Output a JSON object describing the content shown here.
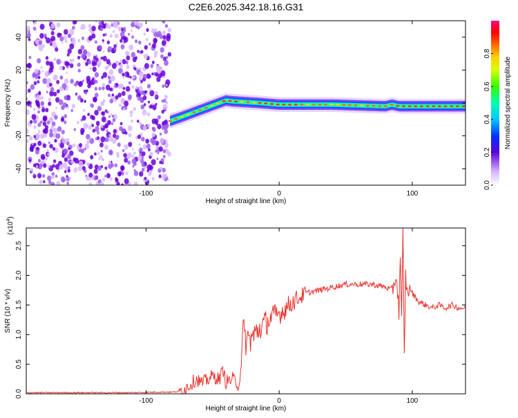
{
  "figure_title": "C2E6.2025.342.18.16.G31",
  "colors": {
    "snr_line": "#e8302a",
    "axis": "#000000",
    "track_core": "#e8302a",
    "scatter_dark": "#6a00d8",
    "scatter_light": "#d9b8ff"
  },
  "chart_data": [
    {
      "type": "heatmap",
      "title": "",
      "xlabel": "Height of straight line (km)",
      "ylabel": "Frequency (Hz)",
      "xlim": [
        -190,
        140
      ],
      "ylim": [
        -50,
        50
      ],
      "x_ticks": [
        -100,
        0,
        100
      ],
      "y_ticks": [
        -40,
        -20,
        0,
        20,
        40
      ],
      "noise_region_x": [
        -190,
        -82
      ],
      "signal_track": {
        "x": [
          -82,
          -75,
          -65,
          -55,
          -45,
          -40,
          -35,
          -25,
          -15,
          0,
          20,
          40,
          60,
          80,
          85,
          90,
          100,
          120,
          140
        ],
        "freq": [
          -11,
          -9,
          -6,
          -3,
          0,
          1.5,
          1,
          0.5,
          0,
          -1,
          -1,
          -1,
          -1.5,
          -2,
          -1,
          -2,
          -2,
          -2,
          -2
        ]
      },
      "colorbar": {
        "label": "Normalized spectral amplitude",
        "range": [
          0,
          1
        ],
        "ticks": [
          0.0,
          0.2,
          0.4,
          0.6,
          0.8
        ]
      }
    },
    {
      "type": "line",
      "title": "",
      "xlabel": "Height of straight line (km)",
      "ylabel": "SNR (10 * v/v)",
      "y_multiplier": "(x10",
      "y_multiplier_exp": "4",
      "y_multiplier_close": ")",
      "xlim": [
        -190,
        140
      ],
      "ylim": [
        0,
        2.8
      ],
      "x_ticks": [
        -100,
        0,
        100
      ],
      "y_ticks": [
        0.0,
        0.5,
        1.0,
        1.5,
        2.0,
        2.5
      ],
      "series": [
        {
          "name": "SNR",
          "x": [
            -190,
            -170,
            -150,
            -130,
            -110,
            -90,
            -80,
            -75,
            -70,
            -65,
            -62,
            -58,
            -55,
            -50,
            -45,
            -42,
            -40,
            -35,
            -30,
            -28,
            -27,
            -25,
            -20,
            -15,
            -10,
            -5,
            0,
            10,
            20,
            30,
            40,
            50,
            60,
            70,
            80,
            85,
            88,
            90,
            91,
            92,
            93,
            94,
            95,
            96,
            98,
            100,
            105,
            110,
            115,
            120,
            125,
            130,
            135,
            140
          ],
          "y": [
            0.02,
            0.02,
            0.02,
            0.02,
            0.02,
            0.03,
            0.03,
            0.04,
            0.1,
            0.2,
            0.25,
            0.18,
            0.22,
            0.3,
            0.25,
            0.4,
            0.2,
            0.25,
            0.15,
            0.7,
            1.05,
            0.9,
            0.95,
            1.1,
            1.2,
            1.3,
            1.35,
            1.55,
            1.7,
            1.75,
            1.8,
            1.85,
            1.85,
            1.85,
            1.8,
            1.75,
            2.0,
            1.4,
            2.35,
            1.2,
            2.7,
            0.6,
            2.0,
            1.7,
            1.8,
            1.7,
            1.55,
            1.5,
            1.45,
            1.5,
            1.45,
            1.5,
            1.45,
            1.45
          ]
        }
      ]
    }
  ]
}
